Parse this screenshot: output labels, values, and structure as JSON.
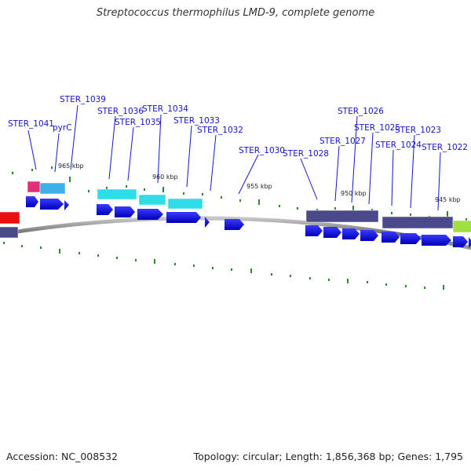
{
  "title": "Streptococcus thermophilus LMD-9, complete genome",
  "footer": {
    "accession": "Accession: NC_008532",
    "summary": "Topology: circular; Length: 1,856,368 bp; Genes: 1,795"
  },
  "kbp_labels": [
    "965 kbp",
    "960 kbp",
    "955 kbp",
    "950 kbp",
    "945 kbp"
  ],
  "gene_labels": [
    "STER_1041",
    "pyrC",
    "STER_1039",
    "STER_1036",
    "STER_1035",
    "STER_1034",
    "STER_1033",
    "STER_1032",
    "STER_1030",
    "STER_1028",
    "STER_1027",
    "STER_1026",
    "STER_1025",
    "STER_1024",
    "STER_1023",
    "STER_1022"
  ],
  "colors": {
    "label_text": "#1414c8",
    "cds_arrow": "#0a0ad8",
    "tick": "#2a8a2a",
    "backbone": "#808080",
    "cog_magenta": "#e0307a",
    "cog_skyblue": "#40b0e8",
    "cog_cyan": "#30dce8",
    "cog_slate": "#4a4a8a",
    "cog_lime": "#a0e040",
    "cog_red": "#e81010"
  }
}
